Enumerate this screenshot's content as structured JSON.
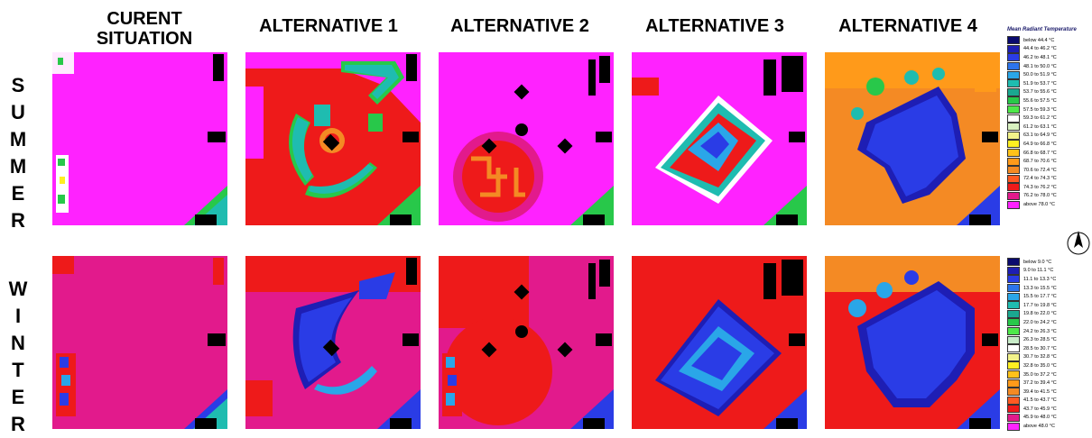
{
  "columns": [
    {
      "title_line1": "CURENT",
      "title_line2": "SITUATION"
    },
    {
      "title_line1": "ALTERNATIVE 1",
      "title_line2": ""
    },
    {
      "title_line1": "ALTERNATIVE 2",
      "title_line2": ""
    },
    {
      "title_line1": "ALTERNATIVE 3",
      "title_line2": ""
    },
    {
      "title_line1": "ALTERNATIVE 4",
      "title_line2": ""
    }
  ],
  "rows": [
    {
      "letters": [
        "S",
        "U",
        "M",
        "M",
        "E",
        "R"
      ]
    },
    {
      "letters": [
        "W",
        "I",
        "N",
        "T",
        "E",
        "R"
      ]
    }
  ],
  "summer_legend": {
    "title": "Mean Radiant Temperature",
    "items": [
      {
        "label": "below 44.4 °C",
        "color": "#0a0a6e"
      },
      {
        "label": "44.4 to 46.2 °C",
        "color": "#1e1eb4"
      },
      {
        "label": "46.2 to 48.1 °C",
        "color": "#2a3ce6"
      },
      {
        "label": "48.1 to 50.0 °C",
        "color": "#2c74ec"
      },
      {
        "label": "50.0 to 51.9 °C",
        "color": "#2aa6e8"
      },
      {
        "label": "51.9 to 53.7 °C",
        "color": "#1fbcb0"
      },
      {
        "label": "53.7 to 55.6 °C",
        "color": "#1aa890"
      },
      {
        "label": "55.6 to 57.5 °C",
        "color": "#28c84a"
      },
      {
        "label": "57.5 to 59.3 °C",
        "color": "#4ee84a"
      },
      {
        "label": "59.3 to 61.2 °C",
        "color": "#ffffff"
      },
      {
        "label": "61.2 to 63.1 °C",
        "color": "#d8f0c0"
      },
      {
        "label": "63.1 to 64.9 °C",
        "color": "#f2f28a"
      },
      {
        "label": "64.9 to 66.8 °C",
        "color": "#ffee22"
      },
      {
        "label": "66.8 to 68.7 °C",
        "color": "#ffc21a"
      },
      {
        "label": "68.7 to 70.6 °C",
        "color": "#ff9a1a"
      },
      {
        "label": "70.6 to 72.4 °C",
        "color": "#f48a24"
      },
      {
        "label": "72.4 to 74.3 °C",
        "color": "#ff5a22"
      },
      {
        "label": "74.3 to 76.2 °C",
        "color": "#ee1a1a"
      },
      {
        "label": "76.2 to 78.0 °C",
        "color": "#e21a8c"
      },
      {
        "label": "above 78.0 °C",
        "color": "#ff22ff"
      }
    ]
  },
  "winter_legend": {
    "items": [
      {
        "label": "below 9.0 °C",
        "color": "#0a0a6e"
      },
      {
        "label": "9.0 to 11.1 °C",
        "color": "#1e1eb4"
      },
      {
        "label": "11.1 to 13.3 °C",
        "color": "#2a3ce6"
      },
      {
        "label": "13.3 to 15.5 °C",
        "color": "#2c74ec"
      },
      {
        "label": "15.5 to 17.7 °C",
        "color": "#2aa6e8"
      },
      {
        "label": "17.7 to 19.8 °C",
        "color": "#1fbcb0"
      },
      {
        "label": "19.8 to 22.0 °C",
        "color": "#1aa890"
      },
      {
        "label": "22.0 to 24.2 °C",
        "color": "#28c84a"
      },
      {
        "label": "24.2 to 26.3 °C",
        "color": "#4ee84a"
      },
      {
        "label": "26.3 to 28.5 °C",
        "color": "#c8ecc8"
      },
      {
        "label": "28.5 to 30.7 °C",
        "color": "#ffffff"
      },
      {
        "label": "30.7 to 32.8 °C",
        "color": "#f2f28a"
      },
      {
        "label": "32.8 to 35.0 °C",
        "color": "#ffee22"
      },
      {
        "label": "35.0 to 37.2 °C",
        "color": "#ffc21a"
      },
      {
        "label": "37.2 to 39.4 °C",
        "color": "#ff9a1a"
      },
      {
        "label": "39.4 to 41.5 °C",
        "color": "#f48a24"
      },
      {
        "label": "41.5 to 43.7 °C",
        "color": "#ff5a22"
      },
      {
        "label": "43.7 to 45.9 °C",
        "color": "#ee1a1a"
      },
      {
        "label": "45.9 to 48.0 °C",
        "color": "#e21a8c"
      },
      {
        "label": "above 48.0 °C",
        "color": "#ff22ff"
      }
    ]
  },
  "colors": {
    "magenta": "#ff22ff",
    "pink": "#e21a8c",
    "red": "#ee1a1a",
    "orange": "#f48a24",
    "teal": "#1fbcb0",
    "blue": "#2a3ce6",
    "navy": "#1e1eb4",
    "green": "#28c84a",
    "yellow": "#ffee22",
    "black": "#000000"
  },
  "north_icon": "north-arrow-icon"
}
